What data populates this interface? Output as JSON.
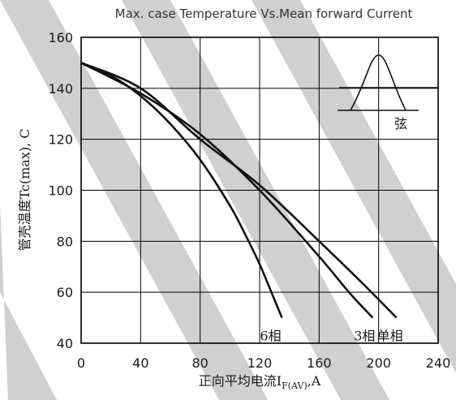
{
  "chart_data": {
    "type": "line",
    "title": "Max. case Temperature Vs.Mean forward Current",
    "xlabel": "正向平均电流I",
    "xlabel_sub": "F(AV)",
    "xlabel_unit": ",A",
    "ylabel": "管壳温度Tc(max), C",
    "xlim": [
      0,
      240
    ],
    "ylim": [
      40,
      160
    ],
    "xticks": [
      0,
      40,
      80,
      120,
      160,
      200,
      240
    ],
    "yticks": [
      40,
      60,
      80,
      100,
      120,
      140,
      160
    ],
    "grid": true,
    "inset_label": "弦",
    "series": [
      {
        "name": "6相",
        "x": [
          0,
          20,
          40,
          60,
          80,
          100,
          110,
          120,
          130,
          135
        ],
        "y": [
          150,
          145,
          137,
          126,
          112,
          94,
          83,
          71,
          57,
          50
        ]
      },
      {
        "name": "3相",
        "x": [
          0,
          40,
          80,
          120,
          160,
          180,
          196
        ],
        "y": [
          150,
          138,
          122,
          100,
          74,
          60,
          50
        ]
      },
      {
        "name": "单相",
        "x": [
          0,
          40,
          80,
          120,
          160,
          190,
          212
        ],
        "y": [
          150,
          140,
          120,
          102,
          80,
          63,
          50
        ]
      }
    ]
  }
}
